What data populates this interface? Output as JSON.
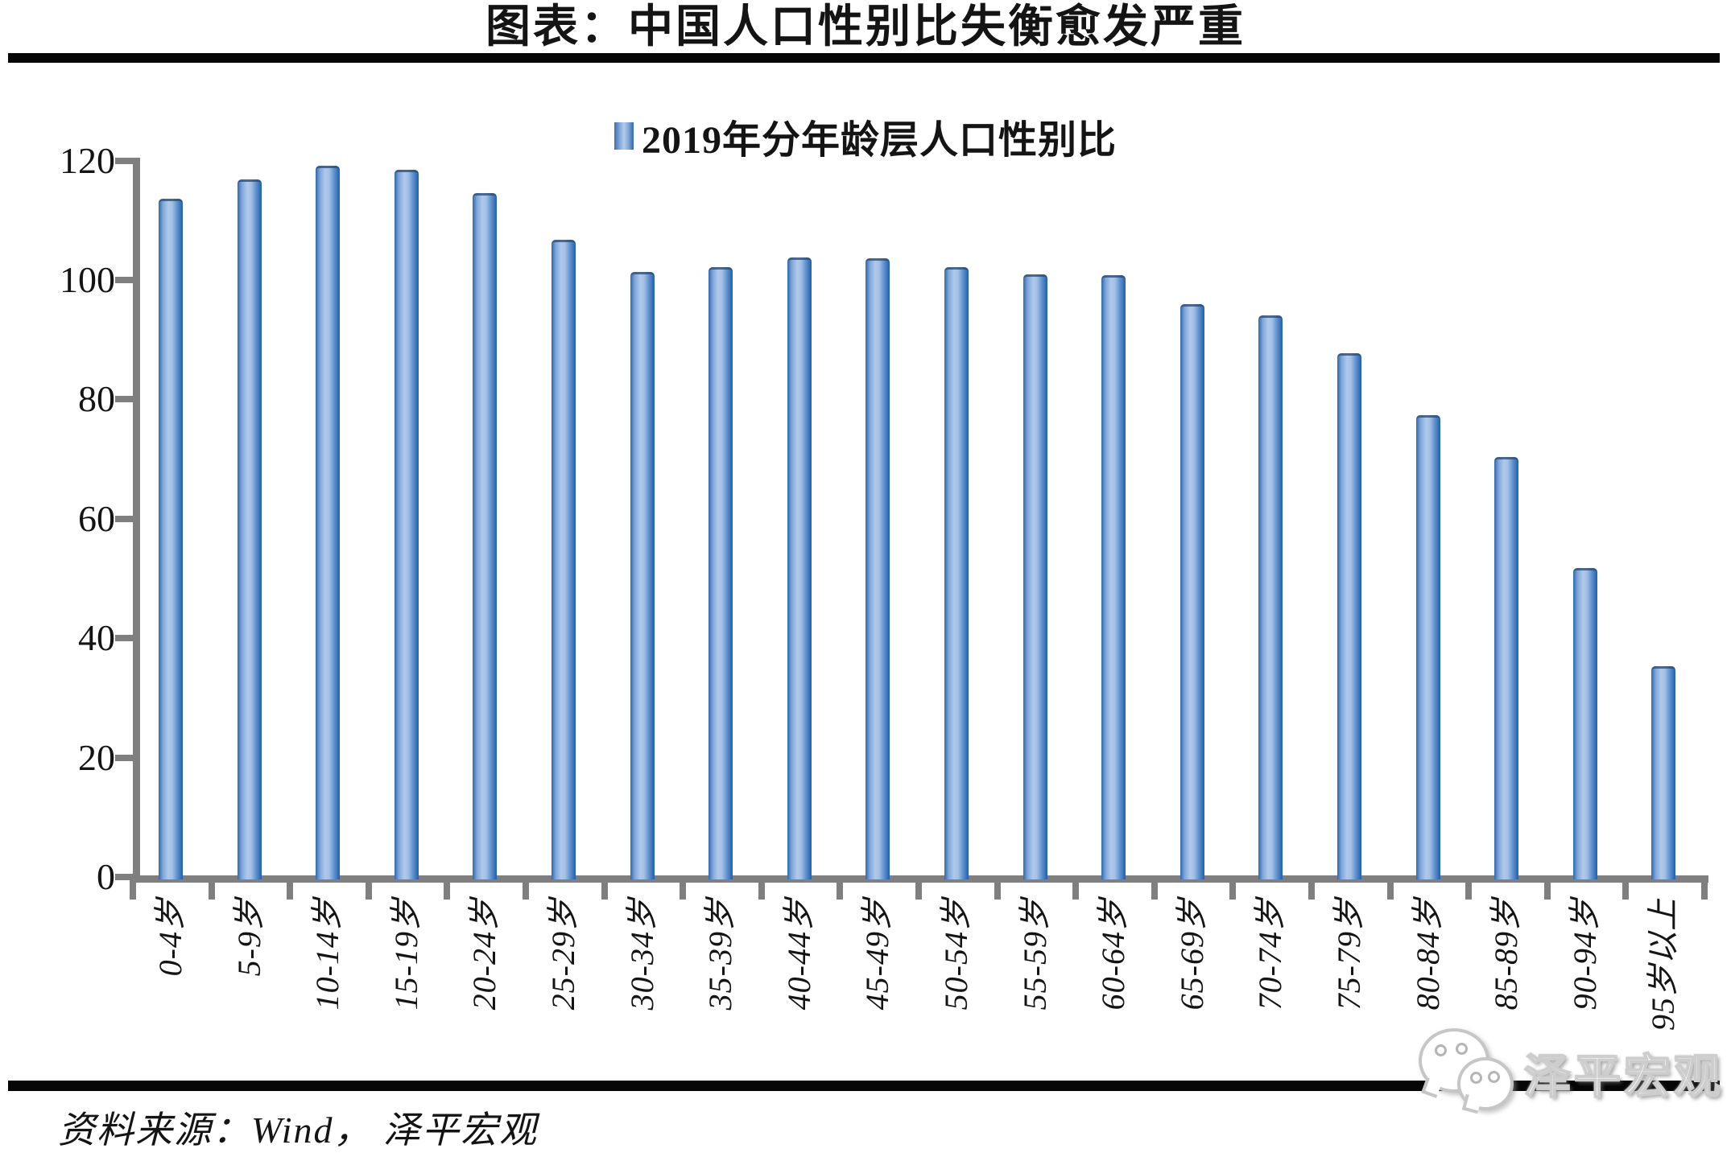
{
  "title": "图表：中国人口性别比失衡愈发严重",
  "legend": {
    "label": "2019年分年龄层人口性别比"
  },
  "chart_data": {
    "type": "bar",
    "title": "2019年分年龄层人口性别比",
    "categories": [
      "0-4岁",
      "5-9岁",
      "10-14岁",
      "15-19岁",
      "20-24岁",
      "25-29岁",
      "30-34岁",
      "35-39岁",
      "40-44岁",
      "45-49岁",
      "50-54岁",
      "55-59岁",
      "60-64岁",
      "65-69岁",
      "70-74岁",
      "75-79岁",
      "80-84岁",
      "85-89岁",
      "90-94岁",
      "95岁以上"
    ],
    "values": [
      113.6,
      116.9,
      119.1,
      118.4,
      114.6,
      106.7,
      101.3,
      102.1,
      103.8,
      103.6,
      102.2,
      100.9,
      100.8,
      95.9,
      94.1,
      87.8,
      77.3,
      70.3,
      51.8,
      35.3
    ],
    "xlabel": "",
    "ylabel": "",
    "ylim": [
      0,
      120
    ],
    "yticks": [
      0,
      20,
      40,
      60,
      80,
      100,
      120
    ],
    "grid": false,
    "legend_position": "top-center",
    "colors": {
      "bar_edge": "#2e68b0",
      "bar_light": "#b0c9ea",
      "axis": "#7f7f7f",
      "rule": "#060606",
      "text": "#141414"
    }
  },
  "source": {
    "text": "资料来源：Wind， 泽平宏观"
  },
  "watermark": {
    "icon": "wechat-icon",
    "text": "泽平宏观"
  }
}
